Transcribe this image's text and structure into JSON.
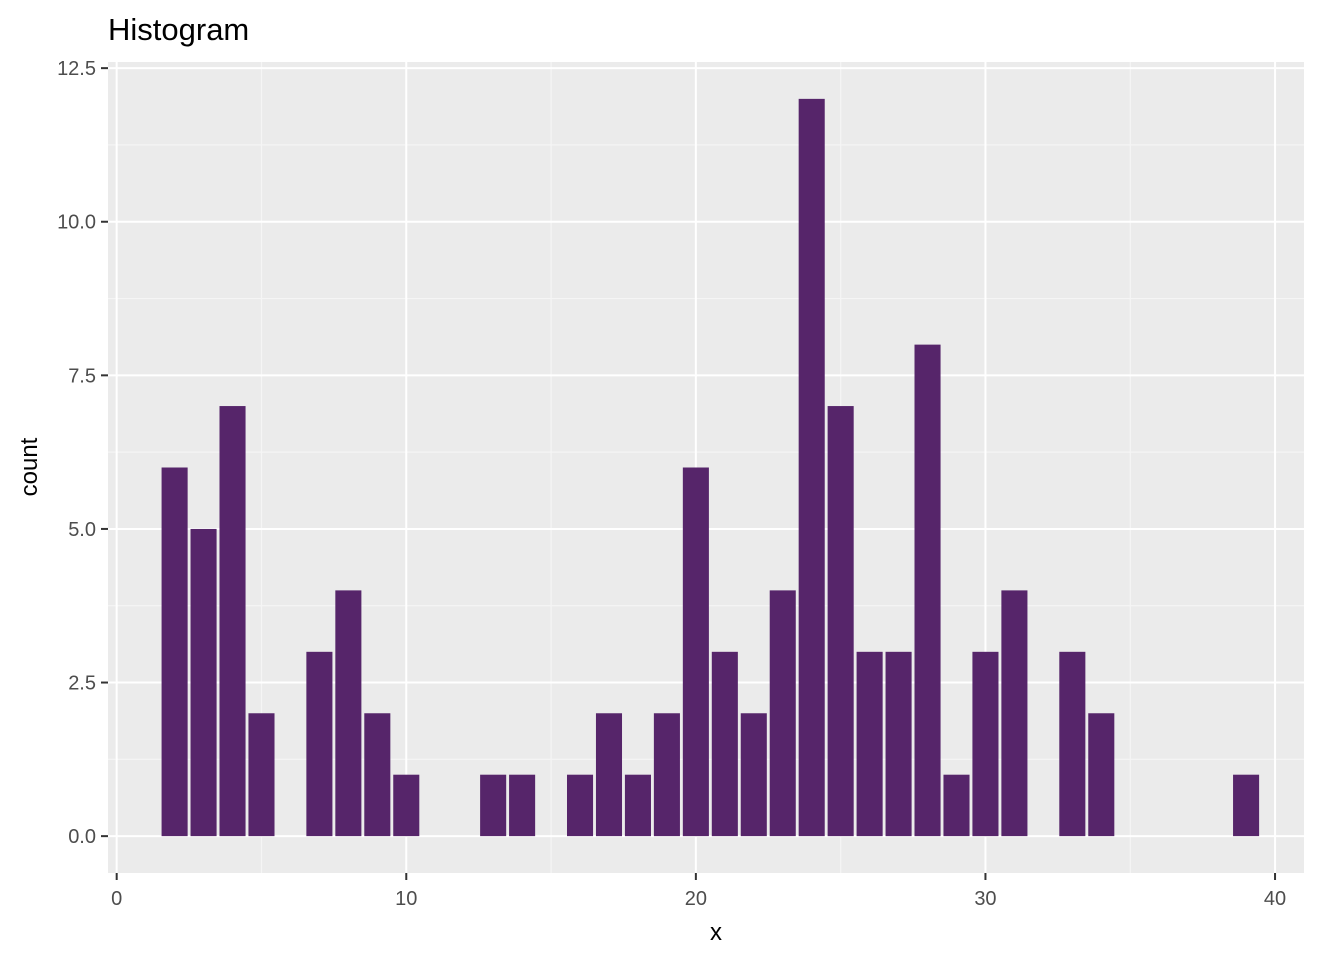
{
  "chart_data": {
    "type": "bar",
    "title": "Histogram",
    "xlabel": "x",
    "ylabel": "count",
    "xlim": [
      -0.3,
      41.0
    ],
    "ylim": [
      -0.6,
      12.6
    ],
    "x_ticks": [
      0,
      10,
      20,
      30,
      40
    ],
    "x_tick_labels": [
      "0",
      "10",
      "20",
      "30",
      "40"
    ],
    "y_ticks": [
      0,
      2.5,
      5,
      7.5,
      10,
      12.5
    ],
    "y_tick_labels": [
      "0.0",
      "2.5",
      "5.0",
      "7.5",
      "10.0",
      "12.5"
    ],
    "bar_width": 0.9,
    "x": [
      2,
      3,
      4,
      5,
      7,
      8,
      9,
      10,
      13,
      14,
      16,
      17,
      18,
      19,
      20,
      21,
      22,
      23,
      24,
      25,
      26,
      27,
      28,
      29,
      30,
      31,
      33,
      34,
      39
    ],
    "values": [
      6,
      5,
      7,
      2,
      3,
      4,
      2,
      1,
      1,
      1,
      1,
      2,
      1,
      2,
      6,
      3,
      2,
      4,
      12,
      7,
      3,
      3,
      8,
      1,
      3,
      4,
      3,
      2,
      1
    ],
    "grid": true,
    "colors": {
      "bar": "#56256a",
      "panel": "#ebebeb",
      "grid_major": "#ffffff",
      "grid_minor": "#f5f5f5",
      "tick": "#333333"
    }
  }
}
